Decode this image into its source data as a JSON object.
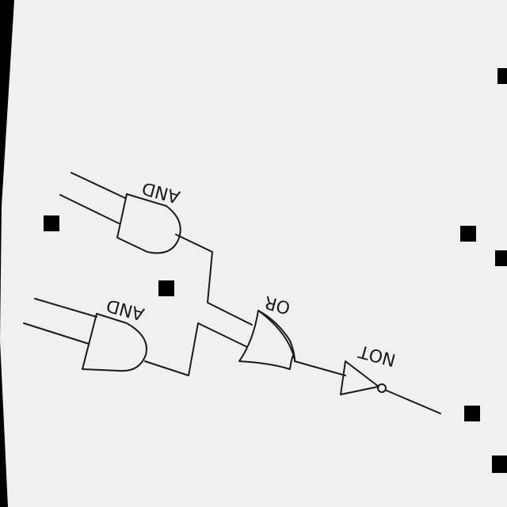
{
  "diagram": {
    "gates": {
      "and_top": {
        "type": "and",
        "label": "AND"
      },
      "and_bottom": {
        "type": "and",
        "label": "AND"
      },
      "or_gate": {
        "type": "or",
        "label": "OR"
      },
      "not_gate": {
        "type": "not",
        "label": "NOT"
      }
    },
    "colors": {
      "paper": "#f0f0f0",
      "ink": "#1a1a1a",
      "background": "#000000",
      "marker": "#000000"
    }
  }
}
